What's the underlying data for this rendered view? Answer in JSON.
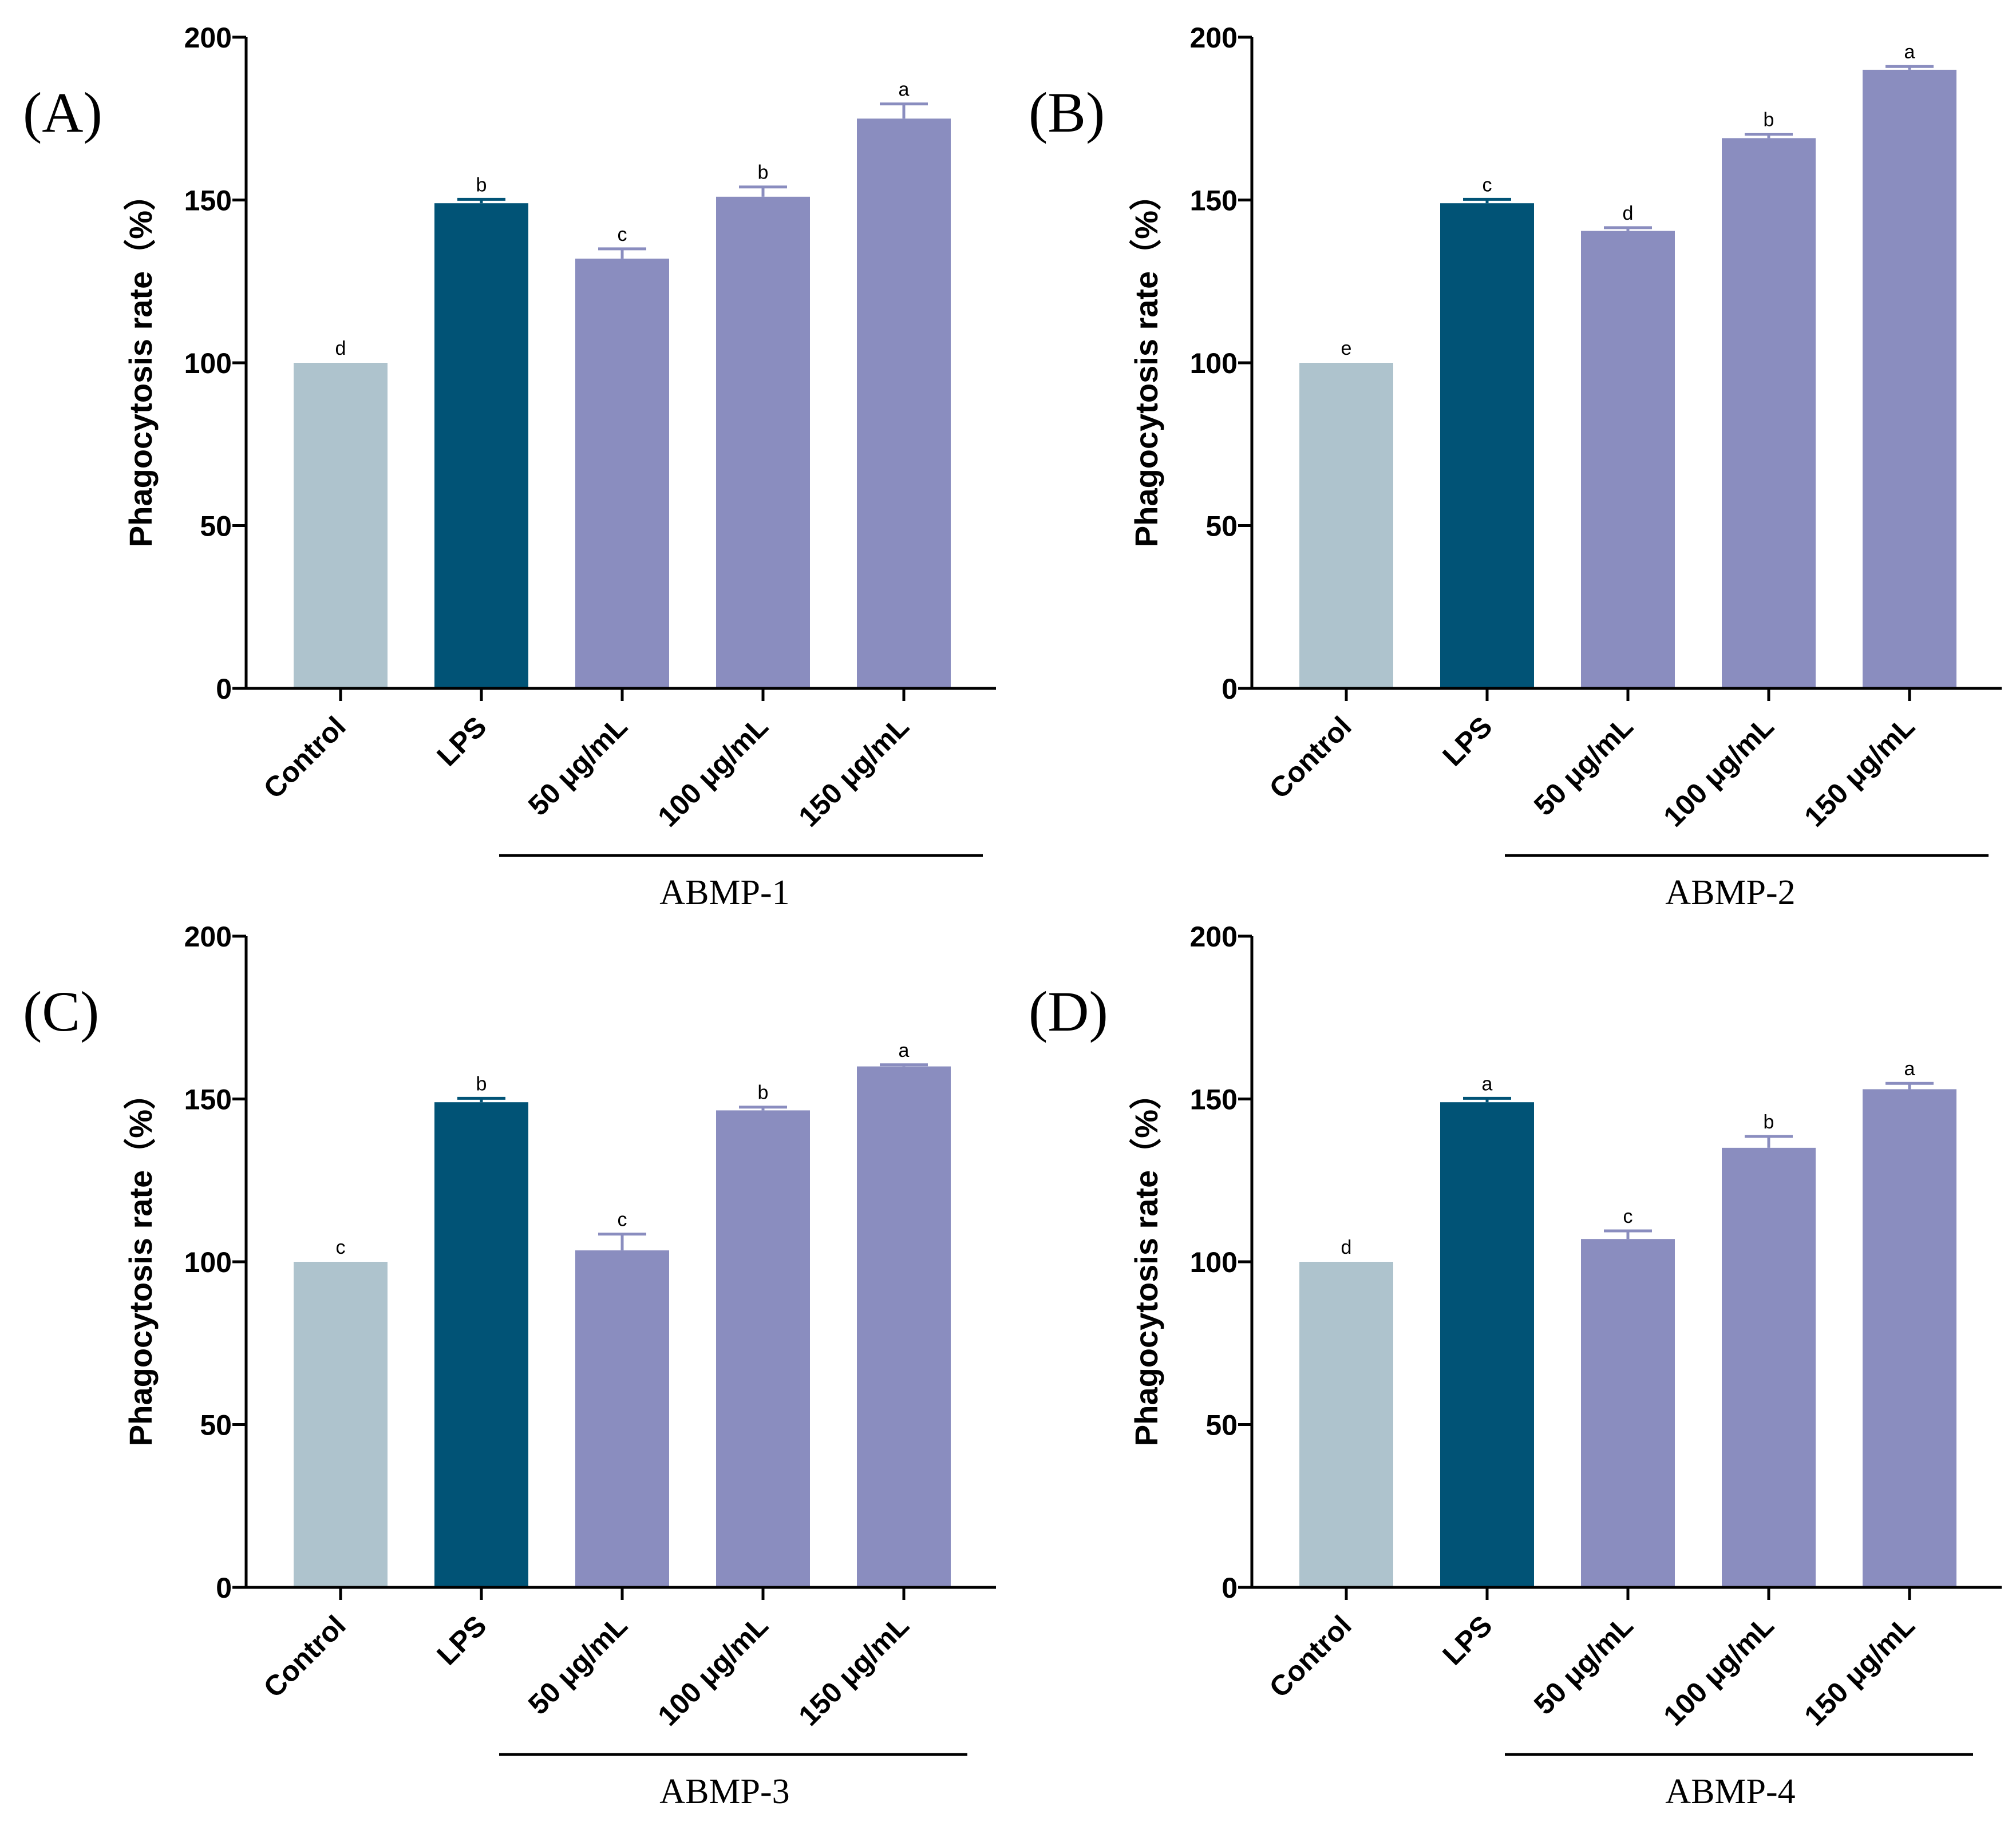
{
  "figure": {
    "y_axis_title": "Phagocytosis rate（%）",
    "colors": {
      "control": "#aec3cd",
      "lps": "#015376",
      "treatment": "#8a8dbf",
      "errorbar_control": "#aec3cd",
      "errorbar_lps": "#015376",
      "errorbar_treatment": "#8a8dbf"
    }
  },
  "chart_data": [
    {
      "type": "bar",
      "panel": "(A)",
      "group_label": "ABMP-1",
      "categories": [
        "Control",
        "LPS",
        "50 μg/mL",
        "100 μg/mL",
        "150 μg/mL"
      ],
      "values": [
        100,
        149,
        132,
        151,
        175
      ],
      "errors": [
        0,
        1.2,
        3,
        3,
        4.5
      ],
      "significance": [
        "d",
        "b",
        "c",
        "b",
        "a"
      ],
      "ylabel": "Phagocytosis rate（%）",
      "ylim": [
        0,
        200
      ],
      "yticks": [
        0,
        50,
        100,
        150,
        200
      ]
    },
    {
      "type": "bar",
      "panel": "(B)",
      "group_label": "ABMP-2",
      "categories": [
        "Control",
        "LPS",
        "50 μg/mL",
        "100 μg/mL",
        "150 μg/mL"
      ],
      "values": [
        100,
        149,
        140.5,
        169,
        190
      ],
      "errors": [
        0,
        1.2,
        1,
        1.2,
        1
      ],
      "significance": [
        "e",
        "c",
        "d",
        "b",
        "a"
      ],
      "ylabel": "Phagocytosis rate（%）",
      "ylim": [
        0,
        200
      ],
      "yticks": [
        0,
        50,
        100,
        150,
        200
      ]
    },
    {
      "type": "bar",
      "panel": "(C)",
      "group_label": "ABMP-3",
      "categories": [
        "Control",
        "LPS",
        "50 μg/mL",
        "100 μg/mL",
        "150 μg/mL"
      ],
      "values": [
        100,
        149,
        103.5,
        146.5,
        160
      ],
      "errors": [
        0,
        1.2,
        5,
        1,
        0.5
      ],
      "significance": [
        "c",
        "b",
        "c",
        "b",
        "a"
      ],
      "ylabel": "Phagocytosis rate（%）",
      "ylim": [
        0,
        200
      ],
      "yticks": [
        0,
        50,
        100,
        150,
        200
      ]
    },
    {
      "type": "bar",
      "panel": "(D)",
      "group_label": "ABMP-4",
      "categories": [
        "Control",
        "LPS",
        "50 μg/mL",
        "100 μg/mL",
        "150 μg/mL"
      ],
      "values": [
        100,
        149,
        107,
        135,
        153
      ],
      "errors": [
        0,
        1.2,
        2.5,
        3.5,
        1.8
      ],
      "significance": [
        "d",
        "a",
        "c",
        "b",
        "a"
      ],
      "ylabel": "Phagocytosis rate（%）",
      "ylim": [
        0,
        200
      ],
      "yticks": [
        0,
        50,
        100,
        150,
        200
      ]
    }
  ]
}
